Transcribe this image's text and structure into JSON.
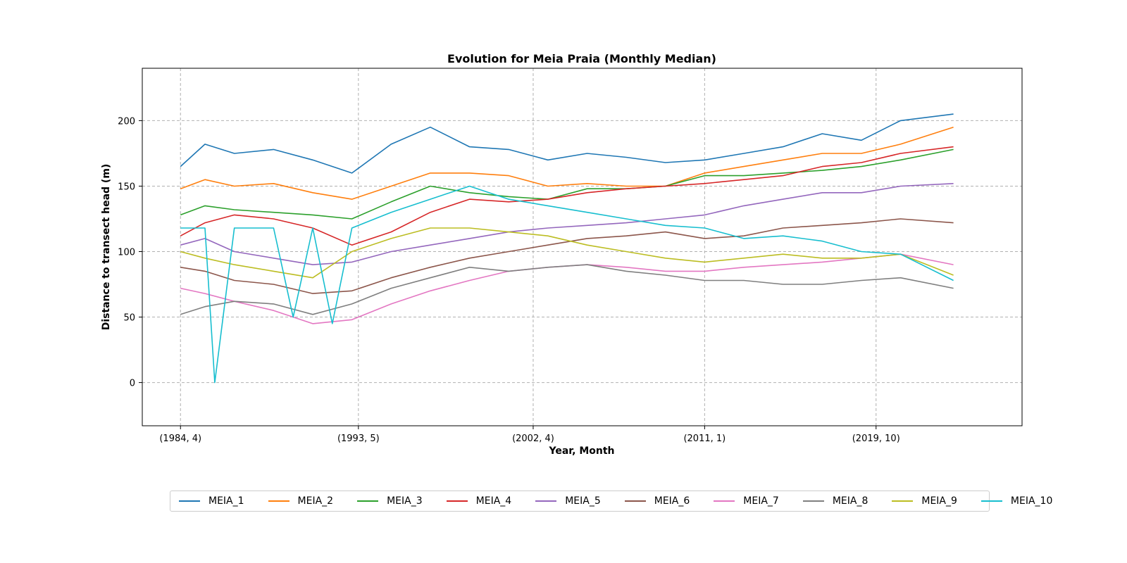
{
  "chart_data": {
    "type": "line",
    "title": "Evolution for Meia Praia (Monthly Median)",
    "xlabel": "Year, Month",
    "ylabel": "Distance to transect head (m)",
    "x_ticks": [
      "(1984, 4)",
      "(1993, 5)",
      "(2002, 4)",
      "(2011, 1)",
      "(2019, 10)"
    ],
    "y_ticks": [
      "0",
      "50",
      "100",
      "150",
      "200"
    ],
    "ylim": [
      -33,
      240
    ],
    "grid": true,
    "legend_position": "bottom-center",
    "x_range_years": [
      1982.3,
      2027.2
    ],
    "series": [
      {
        "name": "MEIA_1",
        "color": "#1f77b4",
        "x": [
          1984.25,
          1985.5,
          1987,
          1989,
          1991,
          1993,
          1995,
          1997,
          1999,
          2001,
          2003,
          2005,
          2007,
          2009,
          2011,
          2013,
          2015,
          2017,
          2019,
          2021,
          2023.7
        ],
        "values": [
          165,
          182,
          175,
          178,
          170,
          160,
          182,
          195,
          180,
          178,
          170,
          175,
          172,
          168,
          170,
          175,
          180,
          190,
          185,
          200,
          205
        ]
      },
      {
        "name": "MEIA_2",
        "color": "#ff7f0e",
        "x": [
          1984.25,
          1985.5,
          1987,
          1989,
          1991,
          1993,
          1995,
          1997,
          1999,
          2001,
          2003,
          2005,
          2007,
          2009,
          2011,
          2013,
          2015,
          2017,
          2019,
          2021,
          2023.7
        ],
        "values": [
          148,
          155,
          150,
          152,
          145,
          140,
          150,
          160,
          160,
          158,
          150,
          152,
          150,
          150,
          160,
          165,
          170,
          175,
          175,
          182,
          195
        ]
      },
      {
        "name": "MEIA_3",
        "color": "#2ca02c",
        "x": [
          1984.25,
          1985.5,
          1987,
          1989,
          1991,
          1993,
          1995,
          1997,
          1999,
          2001,
          2003,
          2005,
          2007,
          2009,
          2011,
          2013,
          2015,
          2017,
          2019,
          2021,
          2023.7
        ],
        "values": [
          128,
          135,
          132,
          130,
          128,
          125,
          138,
          150,
          145,
          142,
          140,
          148,
          148,
          150,
          158,
          158,
          160,
          162,
          165,
          170,
          178
        ]
      },
      {
        "name": "MEIA_4",
        "color": "#d62728",
        "x": [
          1984.25,
          1985.5,
          1987,
          1989,
          1991,
          1993,
          1995,
          1997,
          1999,
          2001,
          2003,
          2005,
          2007,
          2009,
          2011,
          2013,
          2015,
          2017,
          2019,
          2021,
          2023.7
        ],
        "values": [
          112,
          122,
          128,
          125,
          118,
          105,
          115,
          130,
          140,
          138,
          140,
          145,
          148,
          150,
          152,
          155,
          158,
          165,
          168,
          175,
          180
        ]
      },
      {
        "name": "MEIA_5",
        "color": "#9467bd",
        "x": [
          1984.25,
          1985.5,
          1987,
          1989,
          1991,
          1993,
          1995,
          1997,
          1999,
          2001,
          2003,
          2005,
          2007,
          2009,
          2011,
          2013,
          2015,
          2017,
          2019,
          2021,
          2023.7
        ],
        "values": [
          105,
          110,
          100,
          95,
          90,
          92,
          100,
          105,
          110,
          115,
          118,
          120,
          122,
          125,
          128,
          135,
          140,
          145,
          145,
          150,
          152
        ]
      },
      {
        "name": "MEIA_6",
        "color": "#8c564b",
        "x": [
          1984.25,
          1985.5,
          1987,
          1989,
          1991,
          1993,
          1995,
          1997,
          1999,
          2001,
          2003,
          2005,
          2007,
          2009,
          2011,
          2013,
          2015,
          2017,
          2019,
          2021,
          2023.7
        ],
        "values": [
          88,
          85,
          78,
          75,
          68,
          70,
          80,
          88,
          95,
          100,
          105,
          110,
          112,
          115,
          110,
          112,
          118,
          120,
          122,
          125,
          122
        ]
      },
      {
        "name": "MEIA_7",
        "color": "#e377c2",
        "x": [
          1984.25,
          1985.5,
          1987,
          1989,
          1991,
          1993,
          1995,
          1997,
          1999,
          2001,
          2003,
          2005,
          2007,
          2009,
          2011,
          2013,
          2015,
          2017,
          2019,
          2021,
          2023.7
        ],
        "values": [
          72,
          68,
          62,
          55,
          45,
          48,
          60,
          70,
          78,
          85,
          88,
          90,
          88,
          85,
          85,
          88,
          90,
          92,
          95,
          98,
          90
        ]
      },
      {
        "name": "MEIA_8",
        "color": "#7f7f7f",
        "x": [
          1984.25,
          1985.5,
          1987,
          1989,
          1991,
          1993,
          1995,
          1997,
          1999,
          2001,
          2003,
          2005,
          2007,
          2009,
          2011,
          2013,
          2015,
          2017,
          2019,
          2021,
          2023.7
        ],
        "values": [
          52,
          58,
          62,
          60,
          52,
          60,
          72,
          80,
          88,
          85,
          88,
          90,
          85,
          82,
          78,
          78,
          75,
          75,
          78,
          80,
          72
        ]
      },
      {
        "name": "MEIA_9",
        "color": "#bcbd22",
        "x": [
          1984.25,
          1985.5,
          1987,
          1989,
          1991,
          1993,
          1995,
          1997,
          1999,
          2001,
          2003,
          2005,
          2007,
          2009,
          2011,
          2013,
          2015,
          2017,
          2019,
          2021,
          2023.7
        ],
        "values": [
          100,
          95,
          90,
          85,
          80,
          100,
          110,
          118,
          118,
          115,
          112,
          105,
          100,
          95,
          92,
          95,
          98,
          95,
          95,
          98,
          82
        ]
      },
      {
        "name": "MEIA_10",
        "color": "#17becf",
        "x": [
          1984.25,
          1985.5,
          1986,
          1987,
          1988,
          1989,
          1990,
          1991,
          1992,
          1993,
          1995,
          1997,
          1999,
          2001,
          2003,
          2005,
          2007,
          2009,
          2011,
          2013,
          2015,
          2017,
          2019,
          2021,
          2023.7
        ],
        "values": [
          118,
          118,
          0,
          118,
          118,
          118,
          50,
          118,
          45,
          118,
          130,
          140,
          150,
          140,
          135,
          130,
          125,
          120,
          118,
          110,
          112,
          108,
          100,
          98,
          78
        ]
      }
    ]
  }
}
